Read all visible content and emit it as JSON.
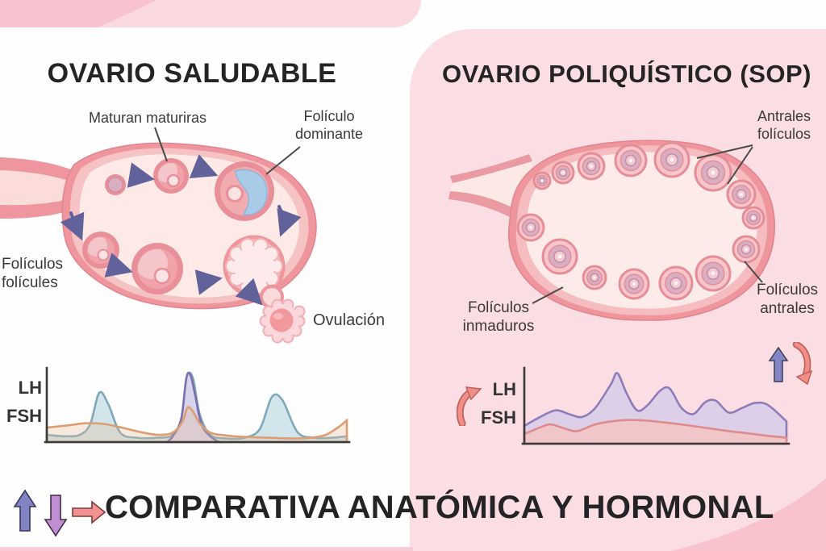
{
  "left_panel": {
    "title": "OVARIO SALUDABLE",
    "labels": {
      "maturing_follicles": "Maturan maturiras",
      "dominant_follicle": [
        "Folículo",
        "dominante"
      ],
      "follicles": [
        "Folículos",
        "folícules"
      ],
      "ovulation": "Ovulación"
    },
    "chart_axis": {
      "top": "LH",
      "bottom": "FSH"
    }
  },
  "right_panel": {
    "title": "OVARIO POLIQUÍSTICO (SOP)",
    "labels": {
      "antral_follicles_top": [
        "Antrales",
        "folículos"
      ],
      "immature_follicles": [
        "Folículos",
        "inmaduros"
      ],
      "antral_follicles_right": [
        "Folículos",
        "antrales"
      ]
    },
    "chart_axis": {
      "top": "LH",
      "bottom": "FSH"
    }
  },
  "footer": {
    "title": "COMPARATIVA ANATÓMICA Y HORMONAL"
  },
  "colors": {
    "panel_pink": "#fbdee4",
    "band_light_pink": "#fbd9e1",
    "band_dark_pink": "#f8c3ce",
    "corner_wedge_pink": "#f9c3cd",
    "ovary_wall_salmon": "#ee959e",
    "ovary_wall_inner": "#f6c3c4",
    "ovary_interior": "#fde9e6",
    "follicle_ring": "#e68e98",
    "follicle_core_mauve": "#d9aec3",
    "dominant_fluid_blue": "#a9cbe8",
    "cycle_arrow_purple": "#62629b",
    "pointer_line": "#4a4a4a",
    "lh_up_arrow_purple": "#8286c5",
    "curved_arrow_salmon": "#ef8f88",
    "footer_up_arrow": "#8184c3",
    "footer_down_arrow": "#c08fcf",
    "footer_right_arrow": "#f49292"
  },
  "chart_data": [
    {
      "id": "healthy",
      "type": "area",
      "title": "OVARIO SALUDABLE",
      "axis_labels": {
        "top": "LH",
        "bottom": "FSH"
      },
      "x_range": [
        0,
        1
      ],
      "y_range": [
        0,
        1
      ],
      "grid": false,
      "series": [
        {
          "name": "LH-ciclico",
          "stroke": "#7fa9bb",
          "fill": "rgba(173,207,216,0.55)",
          "closed": true,
          "points": [
            [
              0,
              0.1
            ],
            [
              0.06,
              0.08
            ],
            [
              0.11,
              0.1
            ],
            [
              0.145,
              0.25
            ],
            [
              0.175,
              0.68
            ],
            [
              0.205,
              0.52
            ],
            [
              0.245,
              0.13
            ],
            [
              0.3,
              0.06
            ],
            [
              0.37,
              0.06
            ],
            [
              0.42,
              0.1
            ],
            [
              0.45,
              0.35
            ],
            [
              0.468,
              0.9
            ],
            [
              0.487,
              0.88
            ],
            [
              0.51,
              0.38
            ],
            [
              0.545,
              0.1
            ],
            [
              0.6,
              0.05
            ],
            [
              0.66,
              0.06
            ],
            [
              0.71,
              0.18
            ],
            [
              0.75,
              0.62
            ],
            [
              0.785,
              0.58
            ],
            [
              0.835,
              0.14
            ],
            [
              0.89,
              0.06
            ],
            [
              0.95,
              0.06
            ],
            [
              1,
              0.08
            ]
          ]
        },
        {
          "name": "LH-pico-ovulatorio",
          "stroke": "#7c6fad",
          "fill": "rgba(216,210,236,0.92)",
          "closed": true,
          "points": [
            [
              0.4,
              0.0
            ],
            [
              0.42,
              0.08
            ],
            [
              0.448,
              0.32
            ],
            [
              0.465,
              0.88
            ],
            [
              0.478,
              0.93
            ],
            [
              0.492,
              0.7
            ],
            [
              0.515,
              0.25
            ],
            [
              0.545,
              0.08
            ],
            [
              0.575,
              0.0
            ]
          ]
        },
        {
          "name": "FSH",
          "stroke": "#dd9c72",
          "fill": "rgba(229,185,150,0.30)",
          "closed": true,
          "points": [
            [
              0,
              0.2
            ],
            [
              0.07,
              0.23
            ],
            [
              0.13,
              0.26
            ],
            [
              0.19,
              0.25
            ],
            [
              0.25,
              0.2
            ],
            [
              0.31,
              0.14
            ],
            [
              0.37,
              0.1
            ],
            [
              0.42,
              0.13
            ],
            [
              0.452,
              0.28
            ],
            [
              0.468,
              0.47
            ],
            [
              0.484,
              0.44
            ],
            [
              0.51,
              0.26
            ],
            [
              0.545,
              0.13
            ],
            [
              0.6,
              0.09
            ],
            [
              0.67,
              0.07
            ],
            [
              0.74,
              0.06
            ],
            [
              0.82,
              0.05
            ],
            [
              0.88,
              0.06
            ],
            [
              0.93,
              0.1
            ],
            [
              0.97,
              0.2
            ],
            [
              1,
              0.3
            ]
          ]
        }
      ]
    },
    {
      "id": "pcos",
      "type": "area",
      "title": "OVARIO POLIQUÍSTICO (SOP)",
      "axis_labels": {
        "top": "LH",
        "bottom": "FSH"
      },
      "x_range": [
        0,
        1
      ],
      "y_range": [
        0,
        1
      ],
      "grid": false,
      "series": [
        {
          "name": "LH",
          "stroke": "#8e7cb8",
          "fill": "rgba(215,204,233,0.85)",
          "closed": true,
          "points": [
            [
              0,
              0.24
            ],
            [
              0.06,
              0.36
            ],
            [
              0.12,
              0.45
            ],
            [
              0.17,
              0.4
            ],
            [
              0.22,
              0.36
            ],
            [
              0.27,
              0.48
            ],
            [
              0.33,
              0.8
            ],
            [
              0.355,
              0.95
            ],
            [
              0.39,
              0.68
            ],
            [
              0.43,
              0.45
            ],
            [
              0.47,
              0.52
            ],
            [
              0.52,
              0.72
            ],
            [
              0.555,
              0.74
            ],
            [
              0.6,
              0.48
            ],
            [
              0.645,
              0.4
            ],
            [
              0.69,
              0.56
            ],
            [
              0.73,
              0.58
            ],
            [
              0.78,
              0.42
            ],
            [
              0.83,
              0.48
            ],
            [
              0.88,
              0.55
            ],
            [
              0.93,
              0.52
            ],
            [
              1,
              0.3
            ]
          ]
        },
        {
          "name": "FSH",
          "stroke": "#dd8b8b",
          "fill": "rgba(243,196,195,0.85)",
          "closed": true,
          "points": [
            [
              0,
              0.13
            ],
            [
              0.06,
              0.22
            ],
            [
              0.1,
              0.26
            ],
            [
              0.15,
              0.21
            ],
            [
              0.2,
              0.17
            ],
            [
              0.27,
              0.26
            ],
            [
              0.33,
              0.3
            ],
            [
              0.4,
              0.32
            ],
            [
              0.47,
              0.31
            ],
            [
              0.55,
              0.28
            ],
            [
              0.62,
              0.25
            ],
            [
              0.7,
              0.21
            ],
            [
              0.78,
              0.17
            ],
            [
              0.85,
              0.14
            ],
            [
              0.92,
              0.11
            ],
            [
              1,
              0.08
            ]
          ]
        }
      ]
    }
  ]
}
